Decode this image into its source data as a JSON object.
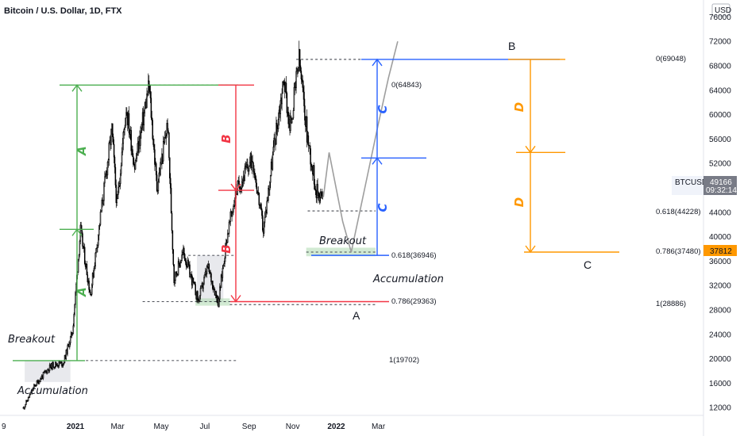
{
  "chart_data": {
    "type": "candlestick",
    "title": "Bitcoin / U.S. Dollar, 1D, FTX",
    "symbol": "BTCUSD",
    "currency": "USD",
    "last_price": "49166",
    "countdown": "09:32:14",
    "marker_price": "37812",
    "y_ticks": [
      "76000",
      "72000",
      "68000",
      "64000",
      "60000",
      "56000",
      "52000",
      "48000",
      "44000",
      "40000",
      "36000",
      "32000",
      "28000",
      "24000",
      "20000",
      "16000",
      "12000"
    ],
    "x_ticks": [
      "9",
      "2021",
      "Mar",
      "May",
      "Jul",
      "Sep",
      "Nov",
      "2022",
      "Mar"
    ],
    "ylim": [
      10000,
      77000
    ],
    "price_path": [
      [
        "2020-10-20",
        11900
      ],
      [
        "2020-11-05",
        15600
      ],
      [
        "2020-11-25",
        18500
      ],
      [
        "2020-12-01",
        19000
      ],
      [
        "2020-12-15",
        19300
      ],
      [
        "2020-12-28",
        24500
      ],
      [
        "2021-01-08",
        41000
      ],
      [
        "2021-01-22",
        30500
      ],
      [
        "2021-02-08",
        46000
      ],
      [
        "2021-02-21",
        57500
      ],
      [
        "2021-02-28",
        45000
      ],
      [
        "2021-03-13",
        61300
      ],
      [
        "2021-03-25",
        51500
      ],
      [
        "2021-04-14",
        64800
      ],
      [
        "2021-04-25",
        48000
      ],
      [
        "2021-05-10",
        58500
      ],
      [
        "2021-05-19",
        33000
      ],
      [
        "2021-06-01",
        37500
      ],
      [
        "2021-06-22",
        29500
      ],
      [
        "2021-07-05",
        35000
      ],
      [
        "2021-07-20",
        29300
      ],
      [
        "2021-08-01",
        40000
      ],
      [
        "2021-08-14",
        47500
      ],
      [
        "2021-09-06",
        52900
      ],
      [
        "2021-09-21",
        41000
      ],
      [
        "2021-10-06",
        55000
      ],
      [
        "2021-10-20",
        66000
      ],
      [
        "2021-10-28",
        57500
      ],
      [
        "2021-11-10",
        69000
      ],
      [
        "2021-11-22",
        56000
      ],
      [
        "2021-12-04",
        47500
      ],
      [
        "2021-12-14",
        46500
      ]
    ],
    "projection_path": [
      [
        "2021-12-14",
        46500
      ],
      [
        "2021-12-22",
        53800
      ],
      [
        "2022-01-10",
        42500
      ],
      [
        "2022-01-22",
        37480
      ],
      [
        "2022-02-10",
        48000
      ],
      [
        "2022-02-28",
        58000
      ],
      [
        "2022-03-15",
        66000
      ],
      [
        "2022-03-28",
        72000
      ]
    ],
    "fib_levels": [
      {
        "label": "1(19702)",
        "value": 19702
      },
      {
        "label": "0(64843)",
        "value": 64843
      },
      {
        "label": "0.618(36946)",
        "value": 36946
      },
      {
        "label": "0.786(29363)",
        "value": 29363
      },
      {
        "label": "0(69048)",
        "value": 69048
      },
      {
        "label": "0.618(44228)",
        "value": 44228
      },
      {
        "label": "0.786(37480)",
        "value": 37480
      },
      {
        "label": "1(28886)",
        "value": 28886
      }
    ],
    "annotations": [
      {
        "text": "Breakout"
      },
      {
        "text": "Accumulation"
      },
      {
        "text": "Breakout"
      },
      {
        "text": "Accumulation"
      }
    ],
    "points": [
      "A",
      "B",
      "C"
    ],
    "waves": [
      "A",
      "A",
      "B",
      "B",
      "C",
      "C",
      "D",
      "D"
    ],
    "colors": {
      "A": "#4caf50",
      "B": "#f23645",
      "C": "#2962ff",
      "D": "#ff9800",
      "zone": "#a5d6a7",
      "candle": "#000000",
      "projection": "#9e9e9e"
    }
  }
}
